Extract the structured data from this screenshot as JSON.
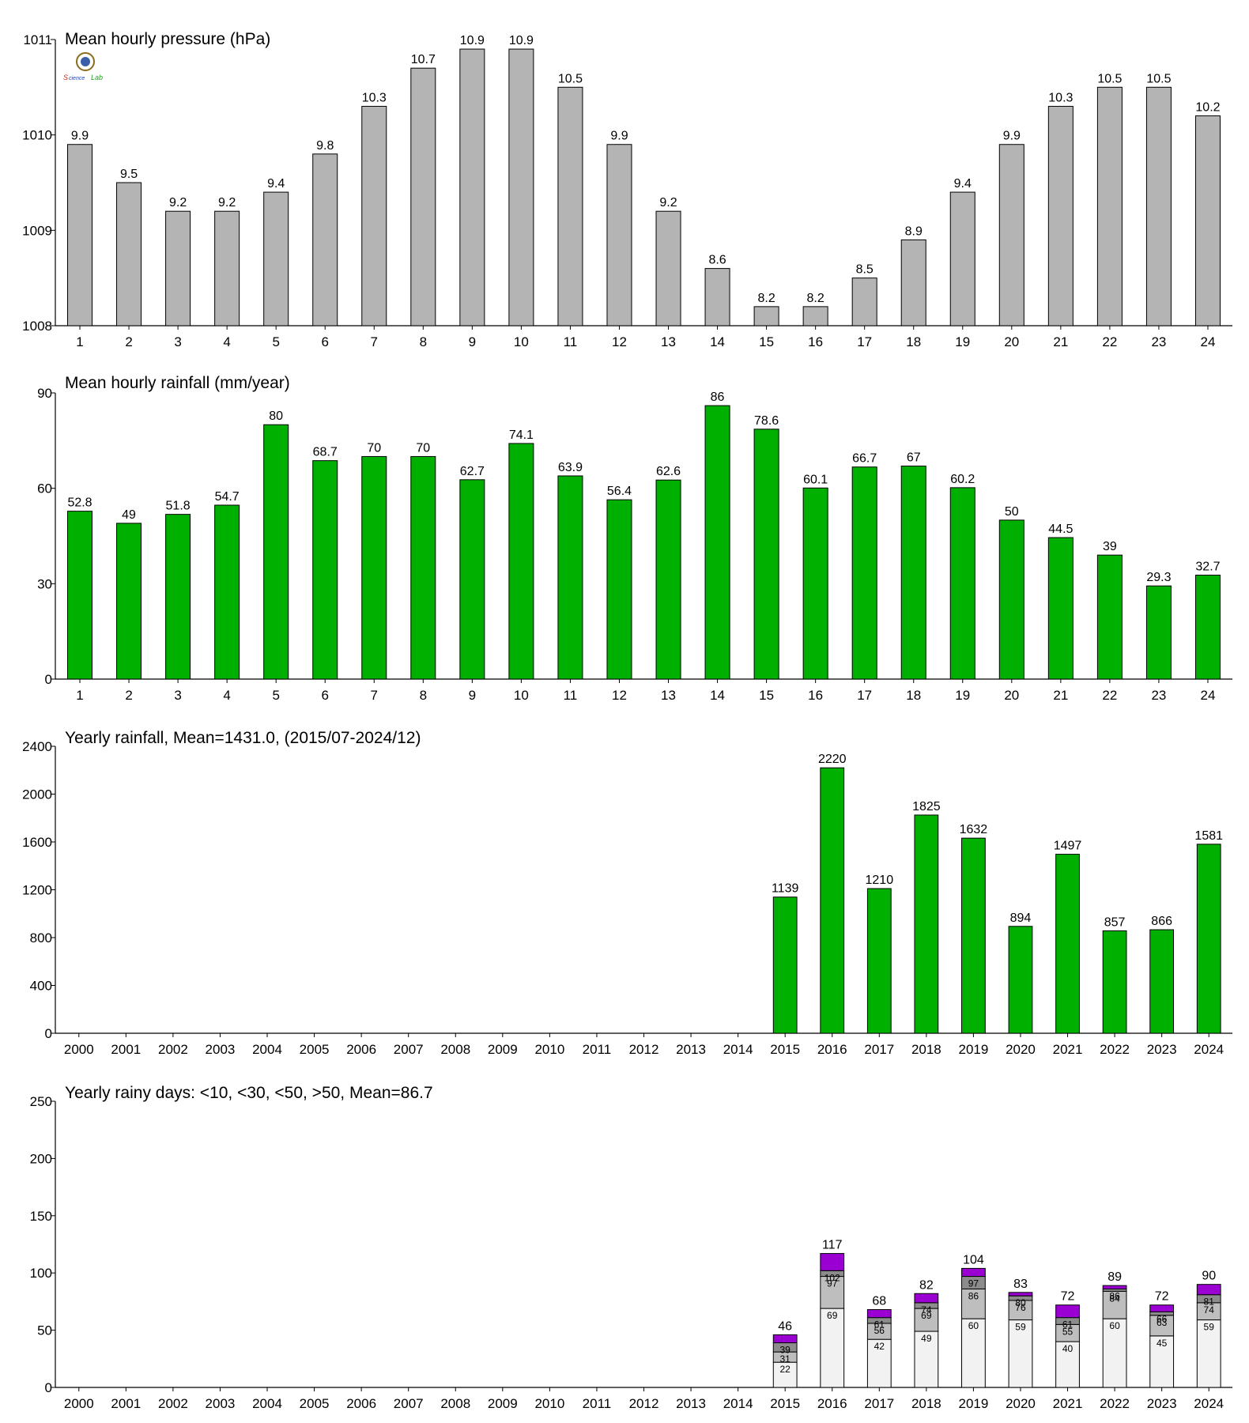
{
  "chart_data": [
    {
      "id": "pressure",
      "type": "bar",
      "title": "Mean hourly pressure (hPa)",
      "categories": [
        "1",
        "2",
        "3",
        "4",
        "5",
        "6",
        "7",
        "8",
        "9",
        "10",
        "11",
        "12",
        "13",
        "14",
        "15",
        "16",
        "17",
        "18",
        "19",
        "20",
        "21",
        "22",
        "23",
        "24"
      ],
      "values": [
        1009.9,
        1009.5,
        1009.2,
        1009.2,
        1009.4,
        1009.8,
        1010.3,
        1010.7,
        1010.9,
        1010.9,
        1010.5,
        1009.9,
        1009.2,
        1008.6,
        1008.2,
        1008.2,
        1008.5,
        1008.9,
        1009.4,
        1009.9,
        1010.3,
        1010.5,
        1010.5,
        1010.2
      ],
      "value_labels": [
        "9.9",
        "9.5",
        "9.2",
        "9.2",
        "9.4",
        "9.8",
        "10.3",
        "10.7",
        "10.9",
        "10.9",
        "10.5",
        "9.9",
        "9.2",
        "8.6",
        "8.2",
        "8.2",
        "8.5",
        "8.9",
        "9.4",
        "9.9",
        "10.3",
        "10.5",
        "10.5",
        "10.2"
      ],
      "ylim": [
        1008,
        1011
      ],
      "yticks": [
        "1008",
        "1009",
        "1010",
        "1011"
      ],
      "bar_color": "#b4b4b4"
    },
    {
      "id": "hourly_rain",
      "type": "bar",
      "title": "Mean hourly rainfall (mm/year)",
      "categories": [
        "1",
        "2",
        "3",
        "4",
        "5",
        "6",
        "7",
        "8",
        "9",
        "10",
        "11",
        "12",
        "13",
        "14",
        "15",
        "16",
        "17",
        "18",
        "19",
        "20",
        "21",
        "22",
        "23",
        "24"
      ],
      "values": [
        52.8,
        49,
        51.8,
        54.7,
        80,
        68.7,
        70,
        70,
        62.7,
        74.1,
        63.9,
        56.4,
        62.6,
        86,
        78.6,
        60.1,
        66.7,
        67,
        60.2,
        50,
        44.5,
        39,
        29.3,
        32.7
      ],
      "value_labels": [
        "52.8",
        "49",
        "51.8",
        "54.7",
        "80",
        "68.7",
        "70",
        "70",
        "62.7",
        "74.1",
        "63.9",
        "56.4",
        "62.6",
        "86",
        "78.6",
        "60.1",
        "66.7",
        "67",
        "60.2",
        "50",
        "44.5",
        "39",
        "29.3",
        "32.7"
      ],
      "ylim": [
        0,
        90
      ],
      "yticks": [
        "0",
        "30",
        "60",
        "90"
      ],
      "bar_color": "#00b000"
    },
    {
      "id": "yearly_rain",
      "type": "bar",
      "title": "Yearly rainfall, Mean=1431.0, (2015/07-2024/12)",
      "categories": [
        "2000",
        "2001",
        "2002",
        "2003",
        "2004",
        "2005",
        "2006",
        "2007",
        "2008",
        "2009",
        "2010",
        "2011",
        "2012",
        "2013",
        "2014",
        "2015",
        "2016",
        "2017",
        "2018",
        "2019",
        "2020",
        "2021",
        "2022",
        "2023",
        "2024"
      ],
      "values": [
        null,
        null,
        null,
        null,
        null,
        null,
        null,
        null,
        null,
        null,
        null,
        null,
        null,
        null,
        null,
        1139,
        2220,
        1210,
        1825,
        1632,
        894,
        1497,
        857,
        866,
        1581
      ],
      "value_labels": [
        "",
        "",
        "",
        "",
        "",
        "",
        "",
        "",
        "",
        "",
        "",
        "",
        "",
        "",
        "",
        "1139",
        "2220",
        "1210",
        "1825",
        "1632",
        "894",
        "1497",
        "857",
        "866",
        "1581"
      ],
      "ylim": [
        0,
        2400
      ],
      "yticks": [
        "0",
        "400",
        "800",
        "1200",
        "1600",
        "2000",
        "2400"
      ],
      "bar_color": "#00b000"
    },
    {
      "id": "rainy_days",
      "type": "stacked-bar",
      "title": "Yearly rainy days: <10, <30, <50, >50, Mean=86.7",
      "categories": [
        "2000",
        "2001",
        "2002",
        "2003",
        "2004",
        "2005",
        "2006",
        "2007",
        "2008",
        "2009",
        "2010",
        "2011",
        "2012",
        "2013",
        "2014",
        "2015",
        "2016",
        "2017",
        "2018",
        "2019",
        "2020",
        "2021",
        "2022",
        "2023",
        "2024"
      ],
      "ylim": [
        0,
        250
      ],
      "yticks": [
        "0",
        "50",
        "100",
        "150",
        "200",
        "250"
      ],
      "series_colors": [
        "#f2f2f2",
        "#bebebe",
        "#8c8c8c",
        "#9b00d2"
      ],
      "cumulative": [
        null,
        null,
        null,
        null,
        null,
        null,
        null,
        null,
        null,
        null,
        null,
        null,
        null,
        null,
        null,
        [
          22,
          31,
          39,
          46
        ],
        [
          69,
          97,
          102,
          117
        ],
        [
          42,
          56,
          61,
          68
        ],
        [
          49,
          69,
          74,
          82
        ],
        [
          60,
          86,
          97,
          104
        ],
        [
          59,
          76,
          80,
          83
        ],
        [
          40,
          55,
          61,
          72
        ],
        [
          60,
          84,
          86,
          89
        ],
        [
          45,
          63,
          66,
          72
        ],
        [
          59,
          74,
          81,
          90
        ]
      ],
      "inner_labels": [
        null,
        null,
        null,
        null,
        null,
        null,
        null,
        null,
        null,
        null,
        null,
        null,
        null,
        null,
        null,
        [
          "22",
          "31",
          "39"
        ],
        [
          "69",
          "97",
          "102"
        ],
        [
          "42",
          "56",
          "61"
        ],
        [
          "49",
          "69",
          "74"
        ],
        [
          "60",
          "86",
          "97"
        ],
        [
          "59",
          "76",
          "80"
        ],
        [
          "40",
          "55",
          "61"
        ],
        [
          "60",
          "84",
          "86"
        ],
        [
          "45",
          "63",
          "66"
        ],
        [
          "59",
          "74",
          "81"
        ]
      ],
      "total_labels": [
        "",
        "",
        "",
        "",
        "",
        "",
        "",
        "",
        "",
        "",
        "",
        "",
        "",
        "",
        "",
        "46",
        "117",
        "68",
        "82",
        "104",
        "83",
        "72",
        "89",
        "72",
        "90"
      ]
    }
  ]
}
